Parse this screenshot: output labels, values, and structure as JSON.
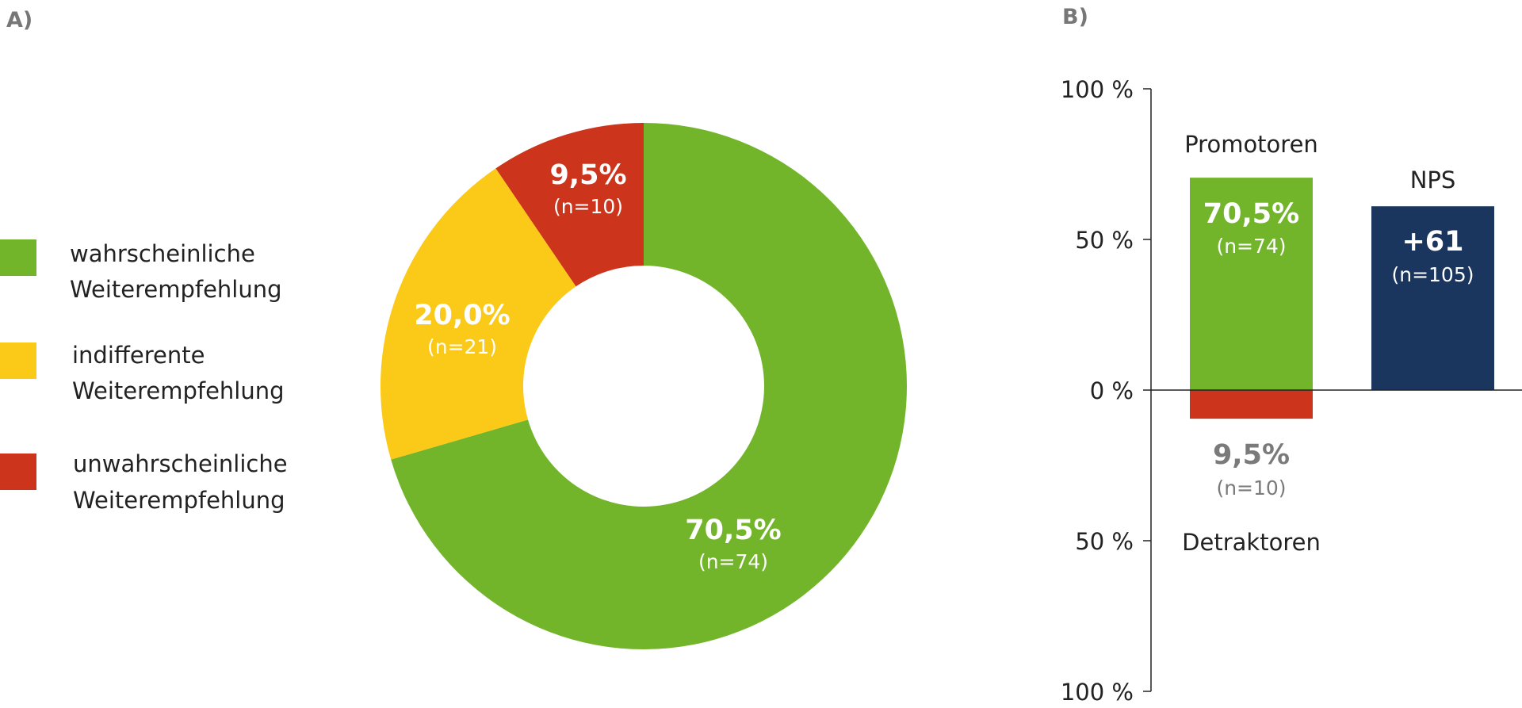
{
  "panel_a": {
    "label": "A)"
  },
  "panel_b": {
    "label": "B)"
  },
  "legend": [
    {
      "line1": "wahrscheinliche",
      "line2": "Weiterempfehlung",
      "color": "#72b52b"
    },
    {
      "line1": "indifferente",
      "line2": "Weiterempfehlung",
      "color": "#fbc918"
    },
    {
      "line1": "unwahrscheinliche",
      "line2": "Weiterempfehlung",
      "color": "#cc341c"
    }
  ],
  "chart_data": [
    {
      "type": "pie",
      "donut": true,
      "slices": [
        {
          "label": "wahrscheinliche Weiterempfehlung",
          "value": 70.5,
          "pct_label": "70,5%",
          "n_label": "(n=74)",
          "color": "#72b52b"
        },
        {
          "label": "indifferente Weiterempfehlung",
          "value": 20.0,
          "pct_label": "20,0%",
          "n_label": "(n=21)",
          "color": "#fbc918"
        },
        {
          "label": "unwahrscheinliche Weiterempfehlung",
          "value": 9.5,
          "pct_label": "9,5%",
          "n_label": "(n=10)",
          "color": "#cc341c"
        }
      ]
    },
    {
      "type": "bar",
      "ylim": [
        -100,
        100
      ],
      "yticks": [
        {
          "value": 100,
          "label": "100 %"
        },
        {
          "value": 50,
          "label": "50 %"
        },
        {
          "value": 0,
          "label": "0 %"
        },
        {
          "value": -50,
          "label": "50 %"
        },
        {
          "value": -100,
          "label": "100 %"
        }
      ],
      "bars": [
        {
          "name": "Promotoren",
          "value": 70.5,
          "value_label": "70,5%",
          "n_label": "(n=74)",
          "color": "#72b52b"
        },
        {
          "name": "Detraktoren",
          "value": -9.5,
          "value_label": "9,5%",
          "n_label": "(n=10)",
          "color": "#cc341c"
        },
        {
          "name": "NPS",
          "value": 61,
          "value_label": "+61",
          "n_label": "(n=105)",
          "color": "#1a355e"
        }
      ]
    }
  ]
}
